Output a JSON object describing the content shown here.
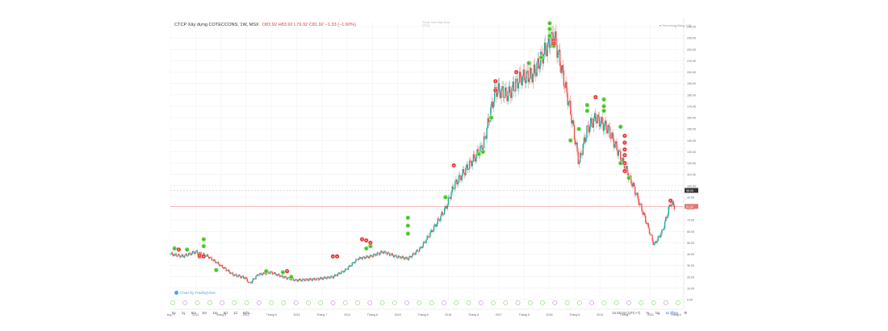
{
  "legend": {
    "symbol": "CTCP Xây dựng COTECCONS, 1W, MSX",
    "ohlc": "O83.92  H83.92  L79.92  C81.92  −1.33 (−1.60%)"
  },
  "top_watermark": [
    "Thuật Toán Máy Mua",
    "(TTC)"
  ],
  "right_note": "▾ Trả trường Bảng 1/15",
  "tradingview_label": "Chart by TradingView",
  "toolbar": {
    "ranges": [
      "5y",
      "1y",
      "6m",
      "3m",
      "1m",
      "5d",
      "1d",
      "Đến..."
    ],
    "time": "16:45:04 (UTC+7)",
    "percent": "%",
    "log": "log",
    "auto": "tự động"
  },
  "colors": {
    "up": "#26a69a",
    "down": "#ef5350",
    "buy_marker": "#5bd33a",
    "sell_marker": "#e54040",
    "price_line": "#e57373",
    "grid": "#eeeeee"
  },
  "chart_data": {
    "type": "candlestick",
    "title": "CTCP Xây dựng COTECCONS, 1W, MSX",
    "ylim": [
      0,
      245
    ],
    "y_ticks": [
      0,
      10,
      20,
      30,
      40,
      50,
      60,
      70,
      80,
      90,
      100,
      110,
      120,
      130,
      140,
      150,
      160,
      170,
      180,
      190,
      200,
      210,
      220,
      230,
      240
    ],
    "x_tick_labels": [
      "áng 7",
      "2011",
      "Tháng 6",
      "2012",
      "Tháng 6",
      "2013",
      "Tháng 7",
      "2014",
      "Tháng 6",
      "2015",
      "Tháng 6",
      "2016",
      "Tháng 6",
      "2017",
      "Tháng 6",
      "2018",
      "Tháng 6",
      "2019",
      "Tháng 7",
      "2020",
      "Tháng 6"
    ],
    "last_price": 81.92,
    "last_price_label": "81.92",
    "ref_price": 96,
    "ref_price_label": "96.00",
    "price_path": [
      [
        "2010-07",
        40
      ],
      [
        "2010-10",
        38
      ],
      [
        "2011-01",
        42
      ],
      [
        "2011-04",
        38
      ],
      [
        "2011-07",
        30
      ],
      [
        "2011-10",
        22
      ],
      [
        "2012-01",
        19
      ],
      [
        "2012-02",
        14
      ],
      [
        "2012-04",
        22
      ],
      [
        "2012-07",
        24
      ],
      [
        "2012-10",
        20
      ],
      [
        "2013-01",
        17
      ],
      [
        "2013-06",
        18
      ],
      [
        "2013-10",
        20
      ],
      [
        "2014-01",
        26
      ],
      [
        "2014-04",
        36
      ],
      [
        "2014-07",
        38
      ],
      [
        "2014-10",
        42
      ],
      [
        "2015-01",
        38
      ],
      [
        "2015-04",
        36
      ],
      [
        "2015-07",
        45
      ],
      [
        "2015-10",
        62
      ],
      [
        "2016-01",
        80
      ],
      [
        "2016-03",
        100
      ],
      [
        "2016-06",
        115
      ],
      [
        "2016-10",
        135
      ],
      [
        "2017-01",
        185
      ],
      [
        "2017-04",
        180
      ],
      [
        "2017-07",
        195
      ],
      [
        "2017-10",
        198
      ],
      [
        "2018-01",
        220
      ],
      [
        "2018-03",
        233
      ],
      [
        "2018-05",
        200
      ],
      [
        "2018-07",
        165
      ],
      [
        "2018-09",
        120
      ],
      [
        "2018-11",
        150
      ],
      [
        "2019-01",
        160
      ],
      [
        "2019-04",
        150
      ],
      [
        "2019-07",
        125
      ],
      [
        "2019-10",
        100
      ],
      [
        "2020-01",
        70
      ],
      [
        "2020-03",
        48
      ],
      [
        "2020-05",
        60
      ],
      [
        "2020-07",
        85
      ],
      [
        "2020-08",
        82
      ]
    ],
    "buy_markers": [
      [
        "2010-08",
        45
      ],
      [
        "2010-11",
        44
      ],
      [
        "2011-03",
        47
      ],
      [
        "2011-03",
        53
      ],
      [
        "2011-06",
        26
      ],
      [
        "2012-06",
        25
      ],
      [
        "2012-10",
        24
      ],
      [
        "2012-12",
        20
      ],
      [
        "2014-06",
        45
      ],
      [
        "2014-07",
        47
      ],
      [
        "2015-04",
        58
      ],
      [
        "2015-04",
        65
      ],
      [
        "2015-04",
        72
      ],
      [
        "2016-01",
        90
      ],
      [
        "2016-09",
        128
      ],
      [
        "2016-10",
        130
      ],
      [
        "2016-12",
        160
      ],
      [
        "2017-09",
        208
      ],
      [
        "2017-12",
        213
      ],
      [
        "2018-02",
        243
      ],
      [
        "2018-02",
        232
      ],
      [
        "2018-02",
        238
      ],
      [
        "2018-03",
        223
      ],
      [
        "2018-07",
        140
      ],
      [
        "2018-09",
        150
      ],
      [
        "2018-11",
        166
      ],
      [
        "2018-11",
        171
      ],
      [
        "2019-03",
        166
      ],
      [
        "2019-03",
        170
      ],
      [
        "2019-03",
        176
      ],
      [
        "2019-07",
        120
      ],
      [
        "2019-07",
        152
      ],
      [
        "2019-09",
        107
      ]
    ],
    "sell_markers": [
      [
        "2010-09",
        44
      ],
      [
        "2011-02",
        38
      ],
      [
        "2011-02",
        39
      ],
      [
        "2011-03",
        38
      ],
      [
        "2012-11",
        25
      ],
      [
        "2013-10",
        38
      ],
      [
        "2013-11",
        38
      ],
      [
        "2014-05",
        53
      ],
      [
        "2014-06",
        52
      ],
      [
        "2014-07",
        50
      ],
      [
        "2016-03",
        118
      ],
      [
        "2017-01",
        192
      ],
      [
        "2017-01",
        184
      ],
      [
        "2017-06",
        200
      ],
      [
        "2018-03",
        228
      ],
      [
        "2018-03",
        225
      ],
      [
        "2019-01",
        178
      ],
      [
        "2019-08",
        144
      ],
      [
        "2019-08",
        138
      ],
      [
        "2019-08",
        132
      ],
      [
        "2019-08",
        127
      ],
      [
        "2019-08",
        120
      ],
      [
        "2019-08",
        113
      ],
      [
        "2020-07",
        87
      ]
    ]
  }
}
